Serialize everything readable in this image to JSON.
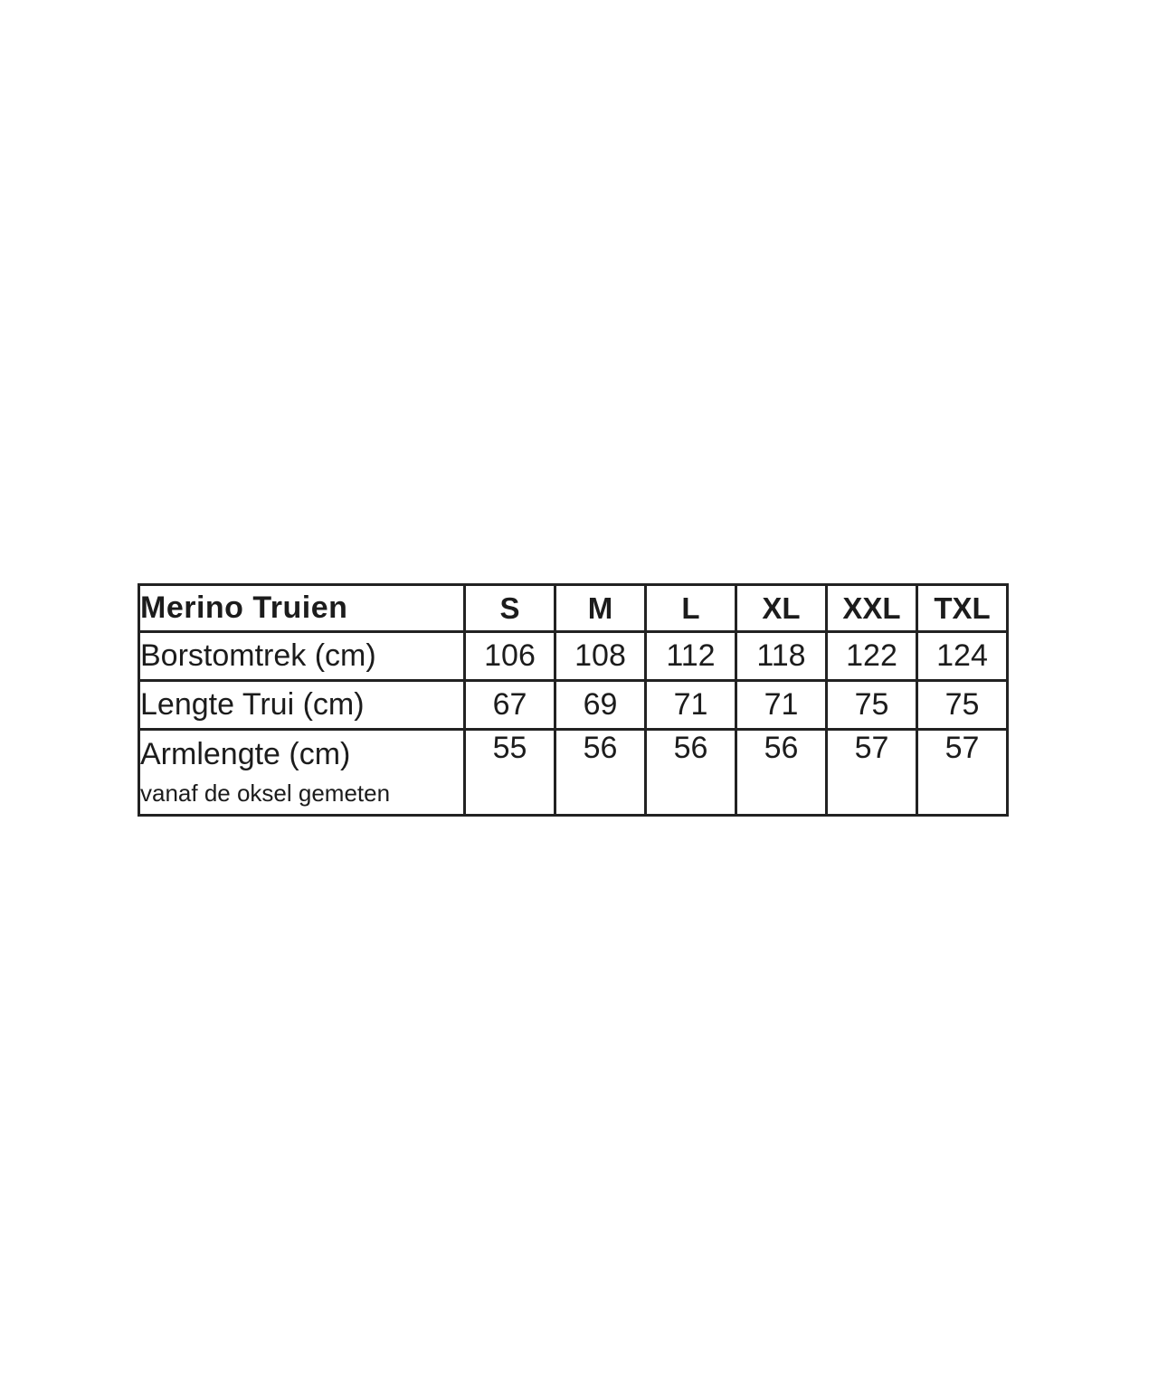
{
  "chart_data": {
    "type": "table",
    "title": "Merino Truien",
    "columns": [
      "Merino Truien",
      "S",
      "M",
      "L",
      "XL",
      "XXL",
      "TXL"
    ],
    "rows": [
      {
        "label": "Borstomtrek (cm)",
        "values": [
          "106",
          "108",
          "112",
          "118",
          "122",
          "124"
        ]
      },
      {
        "label": "Lengte Trui (cm)",
        "values": [
          "67",
          "69",
          "71",
          "71",
          "75",
          "75"
        ]
      },
      {
        "label": "Armlengte (cm)",
        "note": "vanaf de oksel gemeten",
        "values": [
          "55",
          "56",
          "56",
          "56",
          "57",
          "57"
        ]
      }
    ],
    "layout": {
      "grid": "full-borders",
      "text_color": "#1c1c1c",
      "border_color": "#222222",
      "background": "#ffffff"
    }
  }
}
